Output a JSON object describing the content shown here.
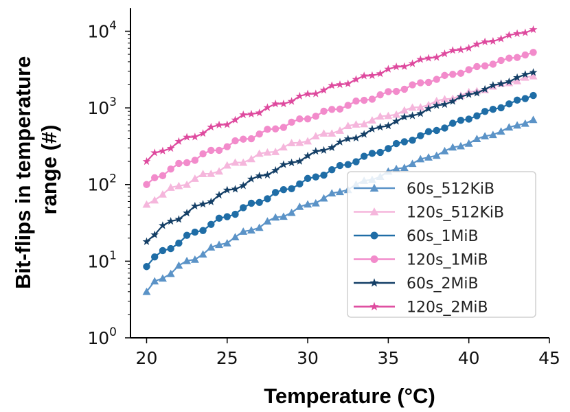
{
  "chart_data": {
    "type": "line",
    "xlabel": "Temperature (°C)",
    "ylabel_lines": [
      "Bit-flips in temperature",
      "range (#)"
    ],
    "xlim": [
      19,
      45
    ],
    "ylim_log10": [
      0,
      4.3
    ],
    "y_scale": "log",
    "x_ticks": [
      {
        "value": 20,
        "label": "20"
      },
      {
        "value": 25,
        "label": "25"
      },
      {
        "value": 30,
        "label": "30"
      },
      {
        "value": 35,
        "label": "35"
      },
      {
        "value": 40,
        "label": "40"
      },
      {
        "value": 45,
        "label": "45"
      }
    ],
    "y_ticks": [
      {
        "exp": 0,
        "base": "10",
        "sup": "0"
      },
      {
        "exp": 1,
        "base": "10",
        "sup": "1"
      },
      {
        "exp": 2,
        "base": "10",
        "sup": "2"
      },
      {
        "exp": 3,
        "base": "10",
        "sup": "3"
      },
      {
        "exp": 4,
        "base": "10",
        "sup": "4"
      }
    ],
    "legend_position": "lower-right",
    "x": [
      20,
      44
    ],
    "points_per_series": 49,
    "series": [
      {
        "name": "120s_2MiB",
        "color": "#DE4A9E",
        "marker": "star",
        "start": 200,
        "end": 10500
      },
      {
        "name": "120s_1MiB",
        "color": "#F28BCB",
        "marker": "circle",
        "start": 100,
        "end": 5300
      },
      {
        "name": "120s_512KiB",
        "color": "#F5B6DC",
        "marker": "triangle",
        "start": 55,
        "end": 2600
      },
      {
        "name": "60s_2MiB",
        "color": "#143F66",
        "marker": "star",
        "start": 18,
        "end": 2900
      },
      {
        "name": "60s_1MiB",
        "color": "#1F6DA6",
        "marker": "circle",
        "start": 8.5,
        "end": 1450
      },
      {
        "name": "60s_512KiB",
        "color": "#5B93C7",
        "marker": "triangle",
        "start": 4,
        "end": 700
      }
    ],
    "legend_order": [
      "60s_512KiB",
      "120s_512KiB",
      "60s_1MiB",
      "120s_1MiB",
      "60s_2MiB",
      "120s_2MiB"
    ]
  }
}
